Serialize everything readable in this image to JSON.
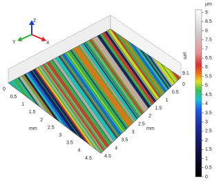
{
  "gizmo": {
    "z": "Z",
    "y": "Y",
    "x": "X"
  },
  "left_axis": {
    "label": "mm",
    "ticks": [
      "0",
      "0.5",
      "1",
      "1.5",
      "2",
      "2.5",
      "3",
      "3.5",
      "4",
      "4.5"
    ]
  },
  "right_axis": {
    "label": "mm",
    "ticks": [
      "0",
      "0.5",
      "1",
      "1.5",
      "2",
      "2.5",
      "3",
      "3.5",
      "4",
      "4.5"
    ]
  },
  "z_axis": {
    "label": "µm",
    "top": "9.1"
  },
  "colorbar": {
    "unit": "µm",
    "ticks": [
      "9",
      "8.5",
      "8",
      "7.5",
      "7",
      "6.5",
      "6",
      "5.5",
      "5",
      "4.5",
      "4",
      "3.5",
      "3",
      "2.5",
      "2",
      "1.5",
      "1",
      "0.5",
      "0"
    ]
  }
}
